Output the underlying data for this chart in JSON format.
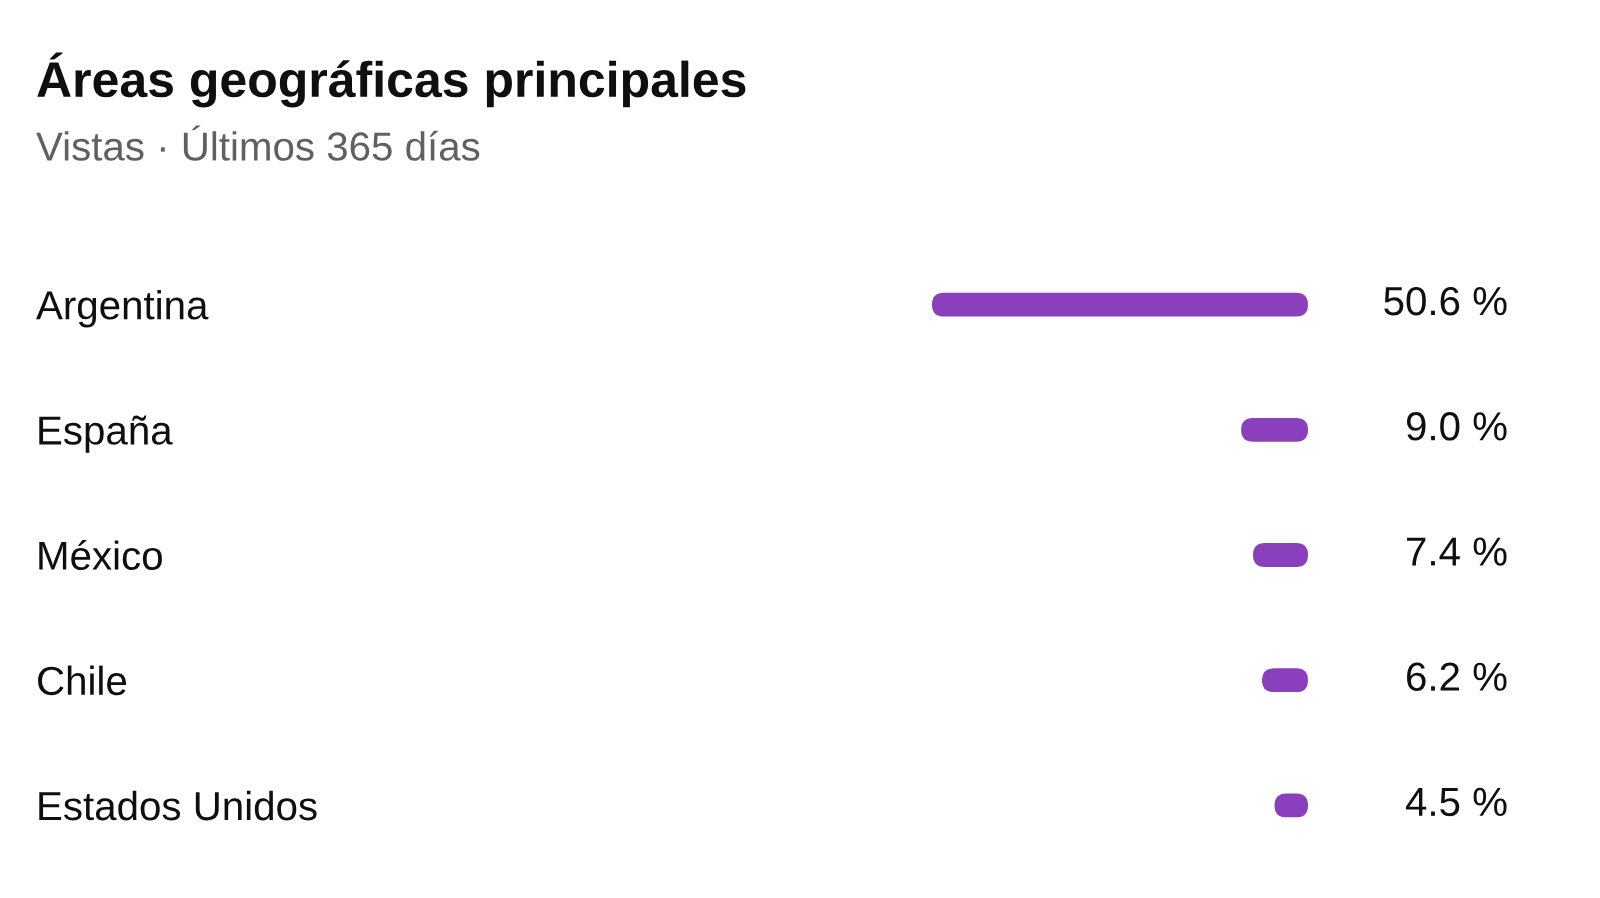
{
  "chart_data": {
    "type": "bar",
    "orientation": "horizontal",
    "title": "Áreas geográficas principales",
    "subtitle": "Vistas · Últimos 365 días",
    "categories": [
      "Argentina",
      "España",
      "México",
      "Chile",
      "Estados Unidos"
    ],
    "values": [
      50.6,
      9.0,
      7.4,
      6.2,
      4.5
    ],
    "color": "#8a3fbc",
    "value_labels": [
      "50.6 %",
      "9.0 %",
      "7.4 %",
      "6.2 %",
      "4.5 %"
    ]
  }
}
